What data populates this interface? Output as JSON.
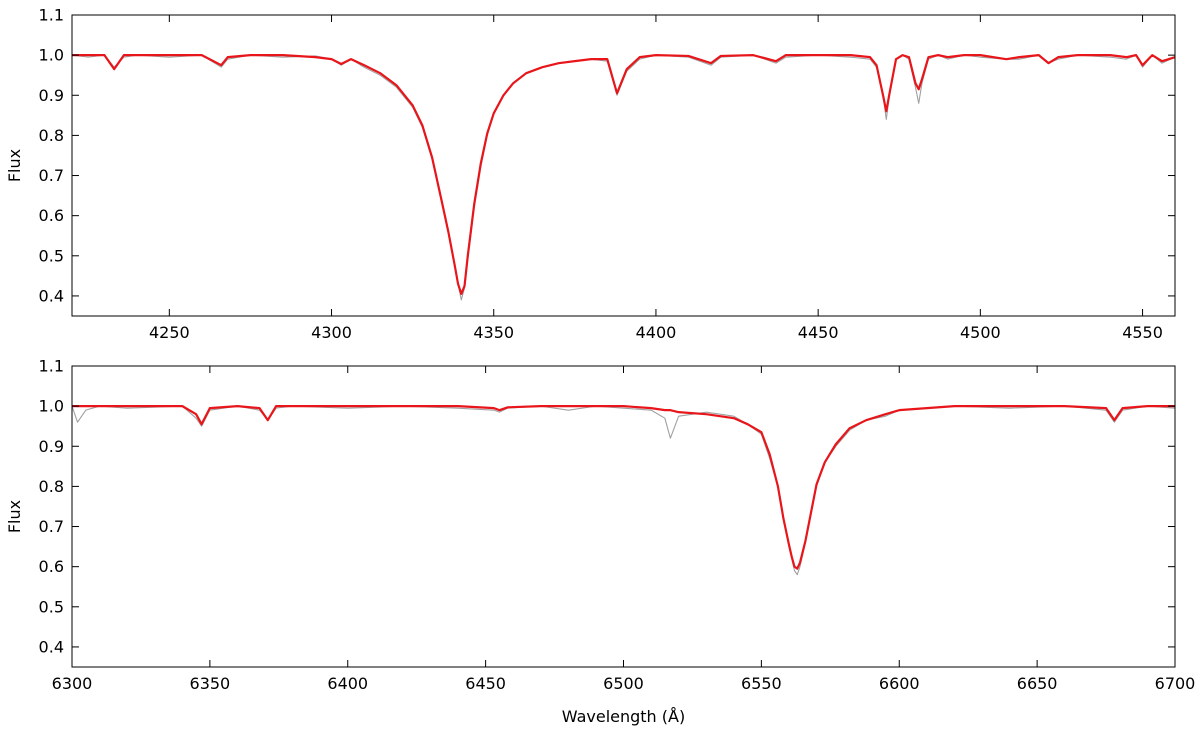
{
  "chart_data": [
    {
      "type": "line",
      "title": "",
      "xlabel": "",
      "ylabel": "Flux",
      "xlim": [
        4220,
        4560
      ],
      "ylim": [
        0.35,
        1.1
      ],
      "grid": false,
      "xticks": [
        4250,
        4300,
        4350,
        4400,
        4450,
        4500,
        4550
      ],
      "yticks": [
        0.4,
        0.5,
        0.6,
        0.7,
        0.8,
        0.9,
        1.0,
        1.1
      ],
      "series": [
        {
          "role": "observed",
          "color": "#a0a0a0",
          "x": [
            4220,
            4225,
            4230,
            4233,
            4236,
            4240,
            4250,
            4260,
            4266,
            4268,
            4275,
            4285,
            4295,
            4300,
            4303,
            4306,
            4310,
            4315,
            4320,
            4325,
            4328,
            4331,
            4334,
            4336,
            4338,
            4339,
            4340,
            4341,
            4342,
            4344,
            4346,
            4348,
            4350,
            4353,
            4356,
            4360,
            4365,
            4370,
            4375,
            4380,
            4385,
            4388,
            4391,
            4395,
            4400,
            4410,
            4417,
            4420,
            4430,
            4437,
            4440,
            4450,
            4460,
            4466,
            4468,
            4470,
            4471,
            4472,
            4474,
            4476,
            4478,
            4480,
            4481,
            4482,
            4484,
            4487,
            4490,
            4495,
            4500,
            4508,
            4512,
            4518,
            4521,
            4524,
            4530,
            4540,
            4545,
            4548,
            4550,
            4553,
            4556,
            4560
          ],
          "y": [
            1.0,
            0.995,
            1.0,
            0.97,
            0.995,
            1.0,
            0.995,
            1.0,
            0.97,
            0.99,
            1.0,
            0.995,
            0.998,
            0.99,
            0.975,
            0.99,
            0.97,
            0.95,
            0.92,
            0.87,
            0.82,
            0.74,
            0.63,
            0.56,
            0.47,
            0.43,
            0.39,
            0.42,
            0.49,
            0.62,
            0.72,
            0.8,
            0.855,
            0.9,
            0.93,
            0.955,
            0.97,
            0.98,
            0.985,
            0.99,
            0.985,
            0.9,
            0.96,
            0.99,
            1.0,
            0.995,
            0.975,
            0.995,
            1.0,
            0.98,
            0.995,
            1.0,
            0.995,
            0.99,
            0.97,
            0.9,
            0.84,
            0.9,
            0.99,
            1.0,
            0.99,
            0.92,
            0.88,
            0.93,
            0.99,
            1.0,
            0.99,
            1.0,
            0.995,
            0.99,
            0.99,
            1.0,
            0.98,
            0.99,
            1.0,
            0.995,
            0.99,
            1.0,
            0.97,
            1.0,
            0.98,
            0.995
          ]
        },
        {
          "role": "model",
          "color": "#e8151a",
          "x": [
            4220,
            4225,
            4230,
            4233,
            4236,
            4240,
            4250,
            4260,
            4266,
            4268,
            4275,
            4285,
            4295,
            4300,
            4303,
            4306,
            4310,
            4315,
            4320,
            4325,
            4328,
            4331,
            4334,
            4336,
            4338,
            4339,
            4340,
            4341,
            4342,
            4344,
            4346,
            4348,
            4350,
            4353,
            4356,
            4360,
            4365,
            4370,
            4375,
            4380,
            4385,
            4388,
            4391,
            4395,
            4400,
            4410,
            4417,
            4420,
            4430,
            4437,
            4440,
            4450,
            4460,
            4466,
            4468,
            4470,
            4471,
            4472,
            4474,
            4476,
            4478,
            4480,
            4481,
            4482,
            4484,
            4487,
            4490,
            4495,
            4500,
            4508,
            4512,
            4518,
            4521,
            4524,
            4530,
            4540,
            4545,
            4548,
            4550,
            4553,
            4556,
            4560
          ],
          "y": [
            1.0,
            1.0,
            1.0,
            0.965,
            1.0,
            1.0,
            1.0,
            1.0,
            0.975,
            0.995,
            1.0,
            1.0,
            0.995,
            0.99,
            0.978,
            0.99,
            0.975,
            0.955,
            0.925,
            0.875,
            0.825,
            0.745,
            0.635,
            0.56,
            0.475,
            0.43,
            0.405,
            0.425,
            0.5,
            0.63,
            0.73,
            0.805,
            0.855,
            0.9,
            0.93,
            0.955,
            0.97,
            0.98,
            0.985,
            0.99,
            0.99,
            0.905,
            0.965,
            0.995,
            1.0,
            0.998,
            0.98,
            0.998,
            1.0,
            0.985,
            1.0,
            1.0,
            1.0,
            0.995,
            0.975,
            0.9,
            0.86,
            0.905,
            0.99,
            1.0,
            0.995,
            0.93,
            0.915,
            0.94,
            0.995,
            1.0,
            0.995,
            1.0,
            1.0,
            0.99,
            0.995,
            1.0,
            0.98,
            0.995,
            1.0,
            1.0,
            0.995,
            1.0,
            0.975,
            1.0,
            0.985,
            0.995
          ]
        }
      ]
    },
    {
      "type": "line",
      "title": "",
      "xlabel": "Wavelength (Å)",
      "ylabel": "Flux",
      "xlim": [
        6300,
        6700
      ],
      "ylim": [
        0.35,
        1.1
      ],
      "grid": false,
      "xticks": [
        6300,
        6350,
        6400,
        6450,
        6500,
        6550,
        6600,
        6650,
        6700
      ],
      "yticks": [
        0.4,
        0.5,
        0.6,
        0.7,
        0.8,
        0.9,
        1.0,
        1.1
      ],
      "series": [
        {
          "role": "observed",
          "color": "#a0a0a0",
          "x": [
            6300,
            6302,
            6305,
            6310,
            6320,
            6340,
            6345,
            6347,
            6350,
            6360,
            6368,
            6371,
            6374,
            6380,
            6400,
            6420,
            6440,
            6453,
            6455,
            6458,
            6470,
            6480,
            6490,
            6500,
            6510,
            6515,
            6517,
            6520,
            6530,
            6540,
            6545,
            6550,
            6553,
            6556,
            6558,
            6560,
            6561,
            6562,
            6563,
            6564,
            6566,
            6568,
            6570,
            6573,
            6577,
            6582,
            6588,
            6595,
            6600,
            6610,
            6620,
            6640,
            6660,
            6675,
            6678,
            6681,
            6690,
            6700
          ],
          "y": [
            1.0,
            0.96,
            0.99,
            1.0,
            0.995,
            1.0,
            0.97,
            0.95,
            0.99,
            1.0,
            0.99,
            0.965,
            0.995,
            1.0,
            0.995,
            1.0,
            0.995,
            0.99,
            0.985,
            0.995,
            1.0,
            0.99,
            1.0,
            0.995,
            0.99,
            0.97,
            0.92,
            0.975,
            0.985,
            0.975,
            0.955,
            0.93,
            0.87,
            0.8,
            0.72,
            0.65,
            0.62,
            0.59,
            0.58,
            0.6,
            0.66,
            0.73,
            0.8,
            0.86,
            0.9,
            0.94,
            0.965,
            0.975,
            0.99,
            0.995,
            1.0,
            0.995,
            1.0,
            0.99,
            0.96,
            0.99,
            1.0,
            0.995
          ]
        },
        {
          "role": "model",
          "color": "#e8151a",
          "x": [
            6300,
            6302,
            6305,
            6310,
            6320,
            6340,
            6345,
            6347,
            6350,
            6360,
            6368,
            6371,
            6374,
            6380,
            6400,
            6420,
            6440,
            6453,
            6455,
            6458,
            6470,
            6480,
            6490,
            6500,
            6510,
            6515,
            6517,
            6520,
            6530,
            6540,
            6545,
            6550,
            6553,
            6556,
            6558,
            6560,
            6561,
            6562,
            6563,
            6564,
            6566,
            6568,
            6570,
            6573,
            6577,
            6582,
            6588,
            6595,
            6600,
            6610,
            6620,
            6640,
            6660,
            6675,
            6678,
            6681,
            6690,
            6700
          ],
          "y": [
            1.0,
            1.0,
            1.0,
            1.0,
            1.0,
            1.0,
            0.98,
            0.955,
            0.995,
            1.0,
            0.995,
            0.965,
            1.0,
            1.0,
            1.0,
            1.0,
            1.0,
            0.995,
            0.99,
            0.997,
            1.0,
            1.0,
            1.0,
            1.0,
            0.995,
            0.99,
            0.99,
            0.985,
            0.98,
            0.97,
            0.955,
            0.935,
            0.88,
            0.8,
            0.72,
            0.655,
            0.625,
            0.6,
            0.595,
            0.61,
            0.665,
            0.735,
            0.805,
            0.86,
            0.905,
            0.945,
            0.965,
            0.98,
            0.99,
            0.995,
            1.0,
            1.0,
            1.0,
            0.995,
            0.965,
            0.995,
            1.0,
            1.0
          ]
        }
      ]
    }
  ]
}
